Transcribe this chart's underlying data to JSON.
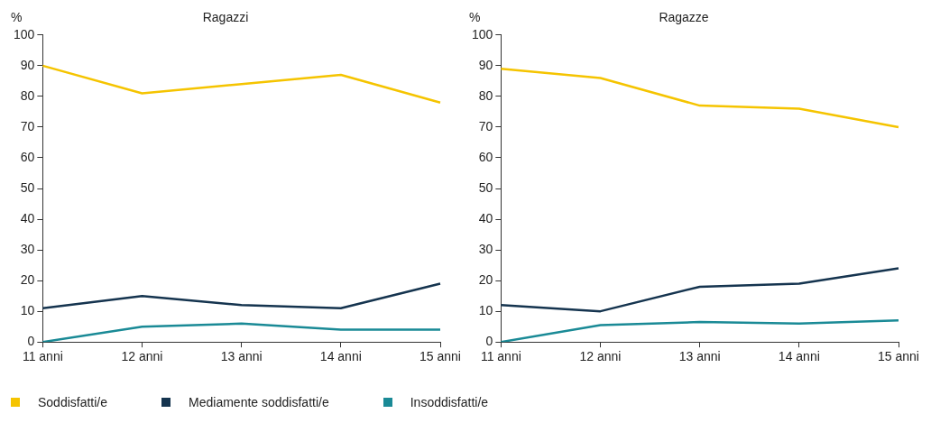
{
  "chart_data": [
    {
      "type": "line",
      "title": "Ragazzi",
      "ylabel": "%",
      "categories": [
        "11 anni",
        "12 anni",
        "13 anni",
        "14 anni",
        "15 anni"
      ],
      "ylim": [
        0,
        100
      ],
      "yticks": [
        0,
        10,
        20,
        30,
        40,
        50,
        60,
        70,
        80,
        90,
        100
      ],
      "grid": false,
      "legend": "bottom",
      "marker": "none",
      "series": [
        {
          "name": "Soddisfatti/e",
          "color": "#f5c400",
          "values": [
            90,
            81,
            84,
            87,
            78
          ]
        },
        {
          "name": "Mediamente soddisfatti/e",
          "color": "#15344f",
          "values": [
            11,
            15,
            12,
            11,
            19
          ]
        },
        {
          "name": "Insoddisfatti/e",
          "color": "#1a8a96",
          "values": [
            0,
            5,
            6,
            4,
            4
          ]
        }
      ]
    },
    {
      "type": "line",
      "title": "Ragazze",
      "ylabel": "%",
      "categories": [
        "11 anni",
        "12 anni",
        "13 anni",
        "14 anni",
        "15 anni"
      ],
      "ylim": [
        0,
        100
      ],
      "yticks": [
        0,
        10,
        20,
        30,
        40,
        50,
        60,
        70,
        80,
        90,
        100
      ],
      "grid": false,
      "marker": "none",
      "series": [
        {
          "color": "#f5c400",
          "values": [
            89,
            86,
            77,
            76,
            70
          ]
        },
        {
          "color": "#15344f",
          "values": [
            12,
            10,
            18,
            19,
            24
          ]
        },
        {
          "color": "#1a8a96",
          "values": [
            0,
            5.5,
            6.5,
            6,
            7
          ]
        }
      ]
    }
  ]
}
